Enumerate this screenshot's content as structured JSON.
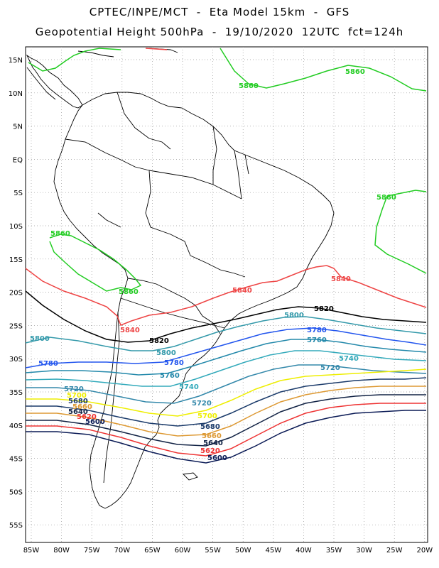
{
  "header": {
    "line1": "CPTEC/INPE/MCT  -  Eta Model 15km  -  GFS",
    "line2": "Geopotential Height 500hPa  -  19/10/2020  12UTC  fct=124h"
  },
  "axes": {
    "lat_labels": [
      "15N",
      "10N",
      "5N",
      "EQ",
      "5S",
      "10S",
      "15S",
      "20S",
      "25S",
      "30S",
      "35S",
      "40S",
      "45S",
      "50S",
      "55S"
    ],
    "lon_labels": [
      "85W",
      "80W",
      "75W",
      "70W",
      "65W",
      "60W",
      "55W",
      "50W",
      "45W",
      "40W",
      "35W",
      "30W",
      "25W",
      "20W"
    ]
  },
  "colors": {
    "c5860": "#22cc22",
    "c5840": "#ee4444",
    "c5820": "#000000",
    "c5800": "#3399aa",
    "c5780": "#2255ee",
    "c5760": "#2288aa",
    "c5740": "#33aabb",
    "c5720": "#3388aa",
    "c5700": "#eeee00",
    "c5680": "#1a3a6a",
    "c5660": "#dd9933",
    "c5640": "#112244",
    "c5620": "#ee3333",
    "c5600": "#0a1a55",
    "coast": "#000000",
    "grid": "#999999"
  },
  "contour_labels": [
    {
      "text": "5860",
      "color": "c5860"
    },
    {
      "text": "5860",
      "color": "c5860"
    },
    {
      "text": "5860",
      "color": "c5860"
    },
    {
      "text": "5860",
      "color": "c5860"
    },
    {
      "text": "5860",
      "color": "c5860"
    },
    {
      "text": "5840",
      "color": "c5840"
    },
    {
      "text": "5840",
      "color": "c5840"
    },
    {
      "text": "5840",
      "color": "c5840"
    },
    {
      "text": "5820",
      "color": "c5820"
    },
    {
      "text": "5820",
      "color": "c5820"
    },
    {
      "text": "5800",
      "color": "c5800"
    },
    {
      "text": "5800",
      "color": "c5800"
    },
    {
      "text": "5800",
      "color": "c5800"
    },
    {
      "text": "5780",
      "color": "c5780"
    },
    {
      "text": "5780",
      "color": "c5780"
    },
    {
      "text": "5780",
      "color": "c5780"
    },
    {
      "text": "5760",
      "color": "c5760"
    },
    {
      "text": "5760",
      "color": "c5760"
    },
    {
      "text": "5740",
      "color": "c5740"
    },
    {
      "text": "5740",
      "color": "c5740"
    },
    {
      "text": "5720",
      "color": "c5720"
    },
    {
      "text": "5720",
      "color": "c5720"
    },
    {
      "text": "5720",
      "color": "c5720"
    },
    {
      "text": "5700",
      "color": "c5700"
    },
    {
      "text": "5700",
      "color": "c5700"
    },
    {
      "text": "5680",
      "color": "c5680"
    },
    {
      "text": "5680",
      "color": "c5680"
    },
    {
      "text": "5660",
      "color": "c5660"
    },
    {
      "text": "5660",
      "color": "c5660"
    },
    {
      "text": "5640",
      "color": "c5640"
    },
    {
      "text": "5640",
      "color": "c5640"
    },
    {
      "text": "5620",
      "color": "c5620"
    },
    {
      "text": "5620",
      "color": "c5620"
    },
    {
      "text": "5600",
      "color": "c5600"
    },
    {
      "text": "5600",
      "color": "c5600"
    }
  ]
}
